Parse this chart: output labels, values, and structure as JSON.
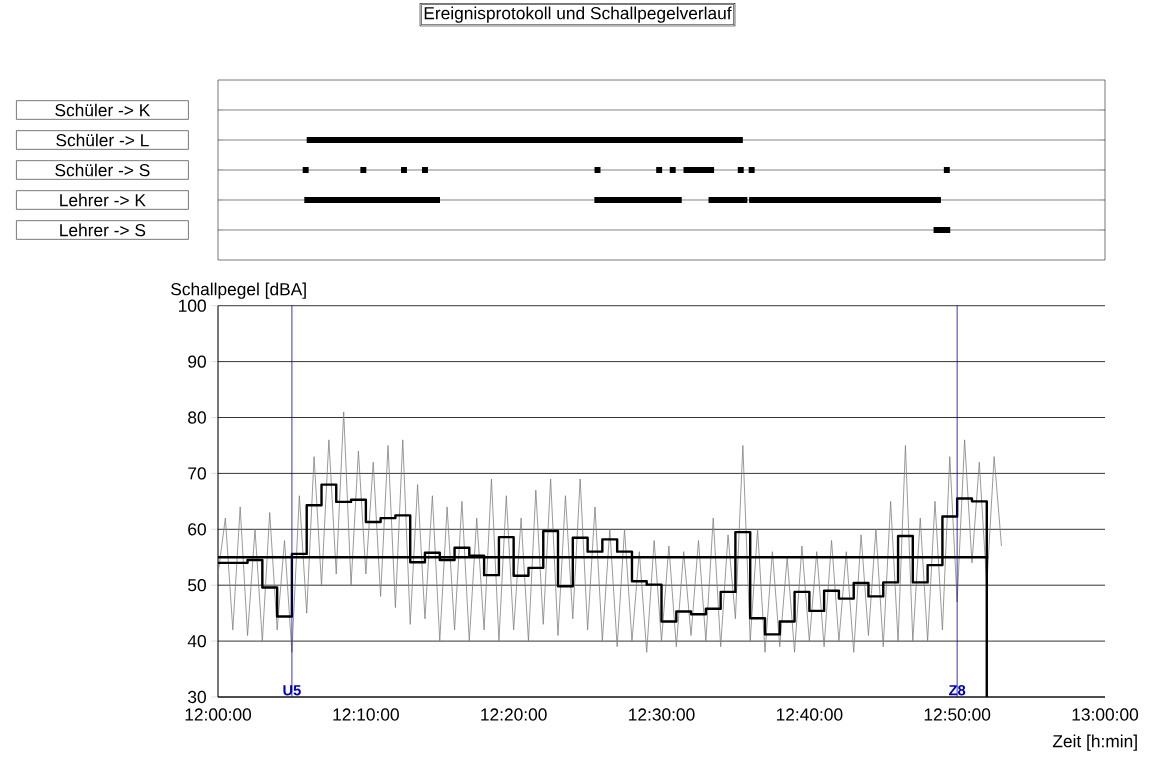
{
  "chart_data": [
    {
      "type": "bar",
      "orientation": "horizontal",
      "title": "Ereignisprotokoll und Schallpegelverlauf",
      "categories": [
        "Schüler -> K",
        "Schüler -> L",
        "Schüler -> S",
        "Lehrer -> K",
        "Lehrer -> S"
      ],
      "series": [
        {
          "color": "#000000",
          "values": [
            null,
            0.4917,
            0.0067,
            0.153,
            0.0188
          ],
          "base": [
            null,
            12.1,
            12.0955,
            12.0973,
            12.8067
          ]
        },
        {
          "color": "#000000",
          "values": [
            null,
            null,
            0.0067,
            0.0985,
            null
          ],
          "base": [
            null,
            null,
            12.1605,
            12.4243,
            null
          ]
        },
        {
          "color": "#000000",
          "values": [
            null,
            null,
            0.0067,
            0.0438,
            null
          ],
          "base": [
            null,
            null,
            12.2063,
            12.553,
            null
          ]
        },
        {
          "color": "#000000",
          "values": [
            null,
            null,
            0.0067,
            0.2162,
            null
          ],
          "base": [
            null,
            null,
            12.23,
            12.5988,
            null
          ]
        },
        {
          "color": "#000000",
          "values": [
            null,
            null,
            0.0067,
            null,
            null
          ],
          "base": [
            null,
            null,
            12.4245,
            null,
            null
          ]
        },
        {
          "color": "#000000",
          "values": [
            null,
            null,
            0.0067,
            null,
            null
          ],
          "base": [
            null,
            null,
            12.494,
            null,
            null
          ]
        },
        {
          "color": "#000000",
          "values": [
            null,
            null,
            0.0067,
            null,
            null
          ],
          "base": [
            null,
            null,
            12.5093,
            null,
            null
          ]
        },
        {
          "color": "#000000",
          "values": [
            null,
            null,
            0.0345,
            null,
            null
          ],
          "base": [
            null,
            null,
            12.5248,
            null,
            null
          ]
        },
        {
          "color": "#000000",
          "values": [
            null,
            null,
            0.0067,
            null,
            null
          ],
          "base": [
            null,
            null,
            12.586,
            null,
            null
          ]
        },
        {
          "color": "#000000",
          "values": [
            null,
            null,
            0.0067,
            null,
            null
          ],
          "base": [
            null,
            null,
            12.5983,
            null,
            null
          ]
        },
        {
          "color": "#000000",
          "values": [
            null,
            null,
            0.0067,
            null,
            null
          ],
          "base": [
            null,
            null,
            12.8183,
            null,
            null
          ]
        }
      ],
      "xlim": [
        12,
        13
      ],
      "tick_labels": "y",
      "grid": "y"
    },
    {
      "type": "line",
      "ylabel": "Schallpegel [dBA]",
      "xlabel": "Zeit [h:min]",
      "xlim": [
        12,
        13
      ],
      "ylim": [
        30,
        100
      ],
      "yticks": [
        30,
        40,
        50,
        60,
        70,
        80,
        90,
        100
      ],
      "grid": "y",
      "xticks": [
        {
          "value": 12,
          "label": "12:00:00"
        },
        {
          "value": 12.1667,
          "label": "12:10:00"
        },
        {
          "value": 12.3333,
          "label": "12:20:00"
        },
        {
          "value": 12.5,
          "label": "12:30:00"
        },
        {
          "value": 12.6667,
          "label": "12:40:00"
        },
        {
          "value": 12.8333,
          "label": "12:50:00"
        },
        {
          "value": 13,
          "label": "13:00:00"
        }
      ],
      "series": [
        {
          "type": "line",
          "color": "#808080",
          "x": [
            12,
            12.0083,
            12.0167,
            12.025,
            12.0333,
            12.0417,
            12.05,
            12.0583,
            12.0667,
            12.075,
            12.0833,
            12.0917,
            12.1,
            12.1083,
            12.1167,
            12.125,
            12.1333,
            12.1417,
            12.15,
            12.1583,
            12.1667,
            12.175,
            12.1833,
            12.1917,
            12.2,
            12.2083,
            12.2167,
            12.225,
            12.2333,
            12.2417,
            12.25,
            12.2583,
            12.2667,
            12.275,
            12.2833,
            12.2917,
            12.3,
            12.3083,
            12.3167,
            12.325,
            12.3333,
            12.3417,
            12.35,
            12.3583,
            12.3667,
            12.375,
            12.3833,
            12.3917,
            12.4,
            12.4083,
            12.4167,
            12.425,
            12.4333,
            12.4417,
            12.45,
            12.4583,
            12.4667,
            12.475,
            12.4833,
            12.4917,
            12.5,
            12.5083,
            12.5167,
            12.525,
            12.5333,
            12.5417,
            12.55,
            12.5583,
            12.5667,
            12.575,
            12.5833,
            12.5917,
            12.6,
            12.6083,
            12.6167,
            12.625,
            12.6333,
            12.6417,
            12.65,
            12.6583,
            12.6667,
            12.675,
            12.6833,
            12.6917,
            12.7,
            12.7083,
            12.7167,
            12.725,
            12.7333,
            12.7417,
            12.75,
            12.7583,
            12.7667,
            12.775,
            12.7833,
            12.7917,
            12.8,
            12.8083,
            12.8167,
            12.825,
            12.8333,
            12.8417,
            12.85,
            12.8583,
            12.8667,
            12.875,
            12.8833
          ],
          "values": [
            52,
            62,
            42,
            64,
            41,
            60,
            40,
            63,
            42,
            58,
            38,
            66,
            45,
            73,
            50,
            76,
            52,
            81,
            50,
            74,
            52,
            72,
            48,
            75,
            46,
            76,
            43,
            68,
            44,
            66,
            40,
            64,
            42,
            65,
            40,
            62,
            42,
            69,
            40,
            66,
            42,
            62,
            40,
            67,
            43,
            69,
            41,
            66,
            44,
            69,
            42,
            64,
            40,
            60,
            39,
            60,
            40,
            56,
            38,
            58,
            40,
            57,
            39,
            56,
            41,
            58,
            40,
            62,
            39,
            59,
            44,
            75,
            40,
            60,
            38,
            56,
            39,
            55,
            38,
            57,
            40,
            56,
            39,
            58,
            40,
            56,
            38,
            59,
            41,
            60,
            39,
            65,
            40,
            75,
            40,
            62,
            40,
            65,
            42,
            73,
            47,
            76,
            54,
            72,
            50,
            73,
            57
          ]
        },
        {
          "type": "line",
          "color": "#000000",
          "x": [
            12,
            12.8683
          ],
          "values": [
            55,
            55
          ]
        },
        {
          "type": "step",
          "color": "#000000",
          "x": [
            12,
            12.0167,
            12.0333,
            12.05,
            12.0667,
            12.0833,
            12.1,
            12.1167,
            12.1333,
            12.15,
            12.1667,
            12.1833,
            12.2,
            12.2167,
            12.2333,
            12.25,
            12.2667,
            12.2833,
            12.3,
            12.3167,
            12.3333,
            12.35,
            12.3667,
            12.3833,
            12.4,
            12.4167,
            12.4333,
            12.45,
            12.4667,
            12.4833,
            12.5,
            12.5167,
            12.5333,
            12.55,
            12.5667,
            12.5833,
            12.6,
            12.6167,
            12.6333,
            12.65,
            12.6667,
            12.6833,
            12.7,
            12.7167,
            12.7333,
            12.75,
            12.7667,
            12.7833,
            12.8,
            12.8167,
            12.8333,
            12.85,
            12.8667
          ],
          "values": [
            54,
            54,
            54.5,
            49.6,
            44.4,
            55.6,
            64.3,
            68,
            64.9,
            65.3,
            61.3,
            62,
            62.5,
            54.1,
            55.8,
            54.5,
            56.7,
            55.3,
            51.8,
            58.6,
            51.7,
            53.1,
            59.7,
            49.8,
            58.5,
            56,
            58.2,
            56,
            50.7,
            50.1,
            43.5,
            45.3,
            44.8,
            45.8,
            48.8,
            59.5,
            44.1,
            41.2,
            43.5,
            48.8,
            45.4,
            49,
            47.6,
            50.4,
            48,
            50.5,
            58.8,
            50.5,
            53.6,
            62.3,
            65.5,
            65,
            30
          ]
        }
      ],
      "ref_lines": [
        {
          "axis": "x",
          "value": 12.0833,
          "label": "U5",
          "color": "#0000c0"
        },
        {
          "axis": "x",
          "value": 12.8333,
          "label": "Z8",
          "color": "#0000c0"
        }
      ]
    }
  ]
}
